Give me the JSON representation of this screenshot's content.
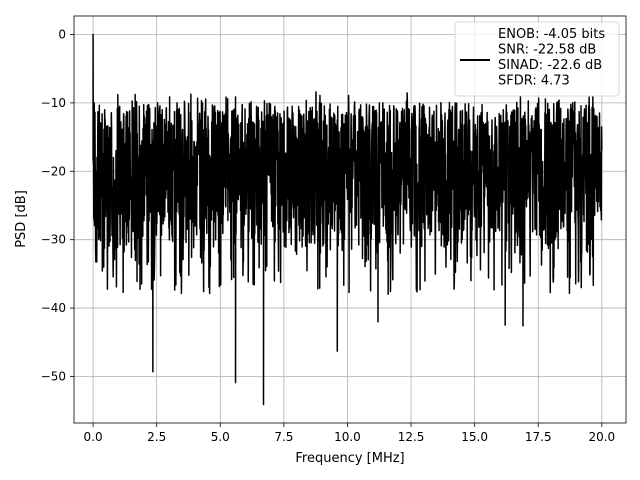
{
  "chart_data": {
    "type": "line",
    "title": "",
    "xlabel": "Frequency [MHz]",
    "ylabel": "PSD [dB]",
    "xlim": [
      -0.75,
      20.95
    ],
    "ylim": [
      -56.8,
      2.7
    ],
    "xticks": [
      0.0,
      2.5,
      5.0,
      7.5,
      10.0,
      12.5,
      15.0,
      17.5,
      20.0
    ],
    "xtick_labels": [
      "0.0",
      "2.5",
      "5.0",
      "7.5",
      "10.0",
      "12.5",
      "15.0",
      "17.5",
      "20.0"
    ],
    "yticks": [
      0,
      -10,
      -20,
      -30,
      -40,
      -50
    ],
    "ytick_labels": [
      "0",
      "−10",
      "−20",
      "−30",
      "−40",
      "−50"
    ],
    "grid": true,
    "legend_position": "top-right",
    "line_color": "#000000",
    "series": [
      {
        "name": "ENOB: -4.05 bits\nSNR: -22.58 dB\nSINAD: -22.6 dB\nSFDR: 4.73",
        "description_points": {
          "x": [
            0.0,
            0.02,
            0.04,
            2.35,
            5.6,
            6.7,
            9.6,
            11.2,
            16.2,
            16.9
          ],
          "y": [
            0.0,
            -20,
            -10,
            -49.3,
            -50.9,
            -54.1,
            -46.3,
            -42.0,
            -42.5,
            -42.6
          ]
        }
      }
    ]
  }
}
